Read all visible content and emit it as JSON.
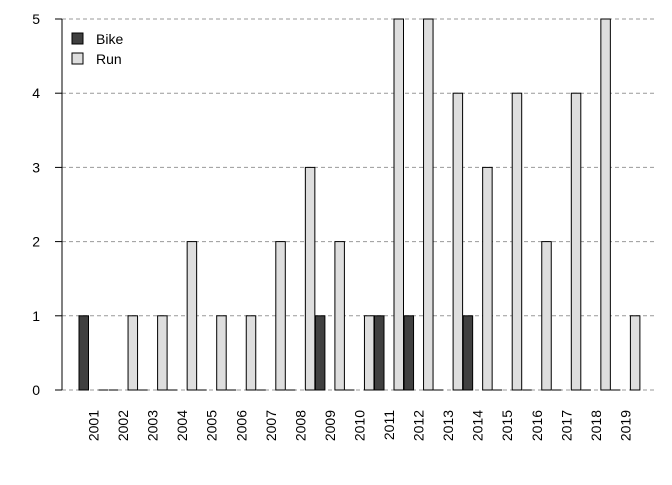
{
  "chart_data": {
    "type": "bar",
    "categories": [
      "2001",
      "2002",
      "2003",
      "2004",
      "2005",
      "2006",
      "2007",
      "2008",
      "2009",
      "2010",
      "2011",
      "2012",
      "2013",
      "2014",
      "2015",
      "2016",
      "2017",
      "2018",
      "2019"
    ],
    "series": [
      {
        "name": "Bike",
        "color": "#404040",
        "values": [
          1,
          0,
          0,
          0,
          0,
          0,
          0,
          0,
          1,
          0,
          1,
          1,
          0,
          1,
          0,
          0,
          0,
          0,
          0
        ]
      },
      {
        "name": "Run",
        "color": "#dedede",
        "values": [
          0,
          1,
          1,
          2,
          1,
          1,
          2,
          3,
          2,
          1,
          5,
          5,
          4,
          3,
          4,
          2,
          4,
          5,
          1
        ]
      }
    ],
    "ylim": [
      0,
      5
    ],
    "yticks": [
      "0",
      "1",
      "2",
      "3",
      "4",
      "5"
    ],
    "grid": "horizontal-dashed",
    "legend_position": "top-left"
  }
}
